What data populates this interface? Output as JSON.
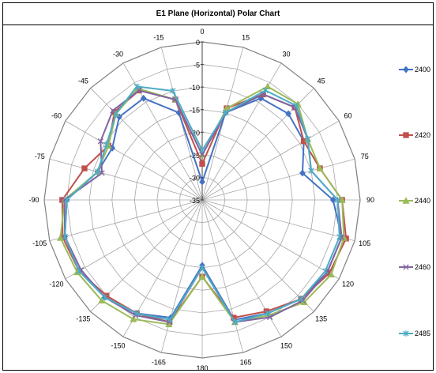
{
  "chart_data": {
    "type": "polar-line",
    "title": "E1 Plane (Horizontal) Polar Chart",
    "angles": [
      0,
      15,
      30,
      45,
      60,
      75,
      90,
      105,
      120,
      135,
      150,
      165,
      180,
      -165,
      -150,
      -135,
      -120,
      -105,
      -90,
      -75,
      -60,
      -45,
      -30,
      -15
    ],
    "angle_tick_labels": [
      "0",
      "15",
      "30",
      "45",
      "60",
      "75",
      "90",
      "105",
      "120",
      "135",
      "150",
      "165",
      "180",
      "-165",
      "-150",
      "-135",
      "-120",
      "-105",
      "-90",
      "-75",
      "-60",
      "-45",
      "-30",
      "-15"
    ],
    "radial_range": [
      -35,
      0
    ],
    "radial_tick_labels": [
      "0",
      "-5",
      "-10",
      "-15",
      "-20",
      "-25",
      "-30",
      "-35"
    ],
    "radial_step": 5,
    "grid": true,
    "legend_position": "right",
    "series": [
      {
        "name": "2400",
        "color": "#4472C4",
        "marker": "diamond",
        "values": [
          -31,
          -15,
          -9,
          -8,
          -9,
          -12,
          -6,
          -3,
          -3,
          -4,
          -6,
          -7.5,
          -20.5,
          -8,
          -6,
          -4.5,
          -3.5,
          -3.5,
          -5,
          -11,
          -12,
          -9,
          -9,
          -15
        ]
      },
      {
        "name": "2420",
        "color": "#C0504D",
        "marker": "square",
        "values": [
          -27,
          -14,
          -8,
          -6,
          -9,
          -8,
          -4,
          -2,
          -2.5,
          -4,
          -6.5,
          -8,
          -18,
          -7,
          -6,
          -5,
          -3.5,
          -3,
          -4,
          -8,
          -11,
          -7.5,
          -7,
          -12
        ]
      },
      {
        "name": "2440",
        "color": "#9BBB59",
        "marker": "triangle",
        "values": [
          -25,
          -14,
          -6,
          -5,
          -8,
          -8,
          -4,
          -2.5,
          -2,
          -3,
          -5.5,
          -7,
          -18,
          -6.5,
          -4.5,
          -3.5,
          -3,
          -2.5,
          -4.5,
          -11,
          -11,
          -8,
          -6.5,
          -12
        ]
      },
      {
        "name": "2460",
        "color": "#8064A2",
        "marker": "x",
        "values": [
          -25,
          -15,
          -8,
          -6,
          -8,
          -10,
          -5,
          -3,
          -3,
          -3.5,
          -5,
          -7,
          -20,
          -7,
          -5.5,
          -4.5,
          -4,
          -3.5,
          -4.5,
          -12,
          -9,
          -7,
          -7,
          -12
        ]
      },
      {
        "name": "2485",
        "color": "#4BACC6",
        "marker": "star",
        "values": [
          -24,
          -15,
          -7,
          -5.5,
          -8,
          -10,
          -5,
          -3.5,
          -3.5,
          -4,
          -6,
          -7,
          -20,
          -7.5,
          -6,
          -4.5,
          -3.5,
          -3.5,
          -5,
          -11,
          -10.5,
          -8,
          -6,
          -10
        ]
      }
    ]
  }
}
